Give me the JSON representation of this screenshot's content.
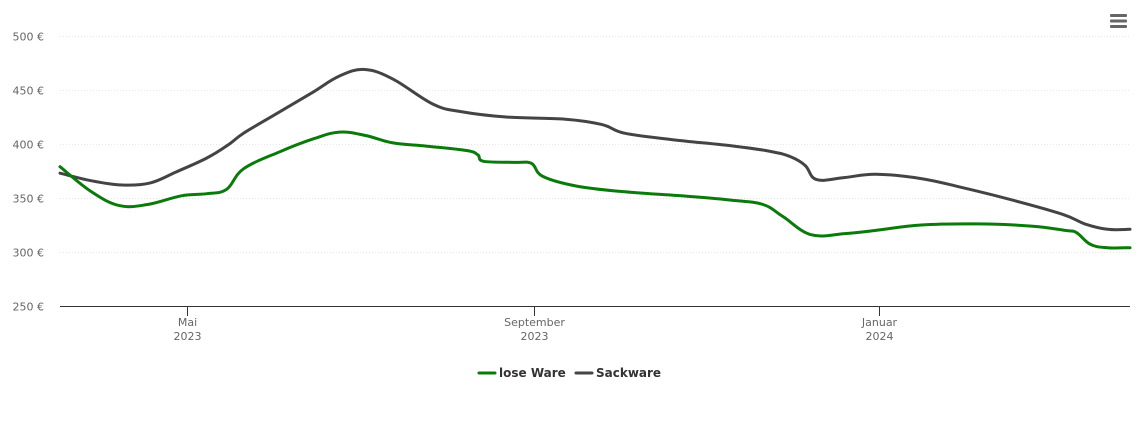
{
  "colors": {
    "lose_ware": "#0a7b0a",
    "sackware": "#444444",
    "menu": "#666666"
  },
  "icons": {
    "menu": "hamburger-menu-icon"
  },
  "chart_data": {
    "type": "line",
    "y_tick_labels": [
      "250 €",
      "300 €",
      "350 €",
      "400 €",
      "450 €",
      "500 €"
    ],
    "y_tick_values": [
      250,
      300,
      350,
      400,
      450,
      500
    ],
    "ylim": [
      250,
      510
    ],
    "xlim": [
      "2023-03-17",
      "2024-03-30"
    ],
    "x_ticks": [
      {
        "date": "2023-05-01",
        "month": "Mai",
        "year": "2023"
      },
      {
        "date": "2023-09-01",
        "month": "September",
        "year": "2023"
      },
      {
        "date": "2024-01-01",
        "month": "Januar",
        "year": "2024"
      }
    ],
    "grid": true,
    "legend_position": "bottom-center",
    "series": [
      {
        "name": "lose Ware",
        "color": "#0a7b0a",
        "points": [
          [
            "2023-03-17",
            379
          ],
          [
            "2023-03-28",
            356
          ],
          [
            "2023-04-07",
            343
          ],
          [
            "2023-04-17",
            344
          ],
          [
            "2023-04-29",
            352
          ],
          [
            "2023-05-08",
            354
          ],
          [
            "2023-05-15",
            358
          ],
          [
            "2023-05-21",
            377
          ],
          [
            "2023-06-03",
            393
          ],
          [
            "2023-06-15",
            405
          ],
          [
            "2023-06-24",
            411
          ],
          [
            "2023-07-03",
            408
          ],
          [
            "2023-07-13",
            401
          ],
          [
            "2023-07-25",
            398
          ],
          [
            "2023-08-08",
            394
          ],
          [
            "2023-08-12",
            390
          ],
          [
            "2023-08-14",
            384
          ],
          [
            "2023-08-25",
            383
          ],
          [
            "2023-08-31",
            382
          ],
          [
            "2023-09-04",
            370
          ],
          [
            "2023-09-16",
            361
          ],
          [
            "2023-10-02",
            356
          ],
          [
            "2023-10-23",
            352
          ],
          [
            "2023-11-10",
            348
          ],
          [
            "2023-11-21",
            344
          ],
          [
            "2023-11-28",
            333
          ],
          [
            "2023-12-08",
            316
          ],
          [
            "2023-12-20",
            317
          ],
          [
            "2023-12-31",
            320
          ],
          [
            "2024-01-16",
            325
          ],
          [
            "2024-02-05",
            326
          ],
          [
            "2024-02-24",
            324
          ],
          [
            "2024-03-07",
            320
          ],
          [
            "2024-03-11",
            318
          ],
          [
            "2024-03-16",
            307
          ],
          [
            "2024-03-22",
            304
          ],
          [
            "2024-03-30",
            304
          ]
        ]
      },
      {
        "name": "Sackware",
        "color": "#444444",
        "points": [
          [
            "2023-03-17",
            373
          ],
          [
            "2023-03-28",
            366
          ],
          [
            "2023-04-08",
            362
          ],
          [
            "2023-04-18",
            364
          ],
          [
            "2023-04-27",
            374
          ],
          [
            "2023-05-08",
            387
          ],
          [
            "2023-05-16",
            400
          ],
          [
            "2023-05-21",
            410
          ],
          [
            "2023-06-01",
            427
          ],
          [
            "2023-06-14",
            447
          ],
          [
            "2023-06-24",
            463
          ],
          [
            "2023-07-03",
            469
          ],
          [
            "2023-07-13",
            460
          ],
          [
            "2023-07-27",
            437
          ],
          [
            "2023-08-06",
            430
          ],
          [
            "2023-08-22",
            425
          ],
          [
            "2023-09-12",
            423
          ],
          [
            "2023-09-25",
            418
          ],
          [
            "2023-10-03",
            410
          ],
          [
            "2023-10-20",
            404
          ],
          [
            "2023-11-11",
            398
          ],
          [
            "2023-11-24",
            393
          ],
          [
            "2023-12-01",
            388
          ],
          [
            "2023-12-06",
            380
          ],
          [
            "2023-12-10",
            367
          ],
          [
            "2023-12-20",
            369
          ],
          [
            "2023-12-31",
            372
          ],
          [
            "2024-01-16",
            368
          ],
          [
            "2024-01-30",
            360
          ],
          [
            "2024-02-16",
            349
          ],
          [
            "2024-03-06",
            335
          ],
          [
            "2024-03-14",
            326
          ],
          [
            "2024-03-22",
            321
          ],
          [
            "2024-03-30",
            321
          ]
        ]
      }
    ]
  }
}
